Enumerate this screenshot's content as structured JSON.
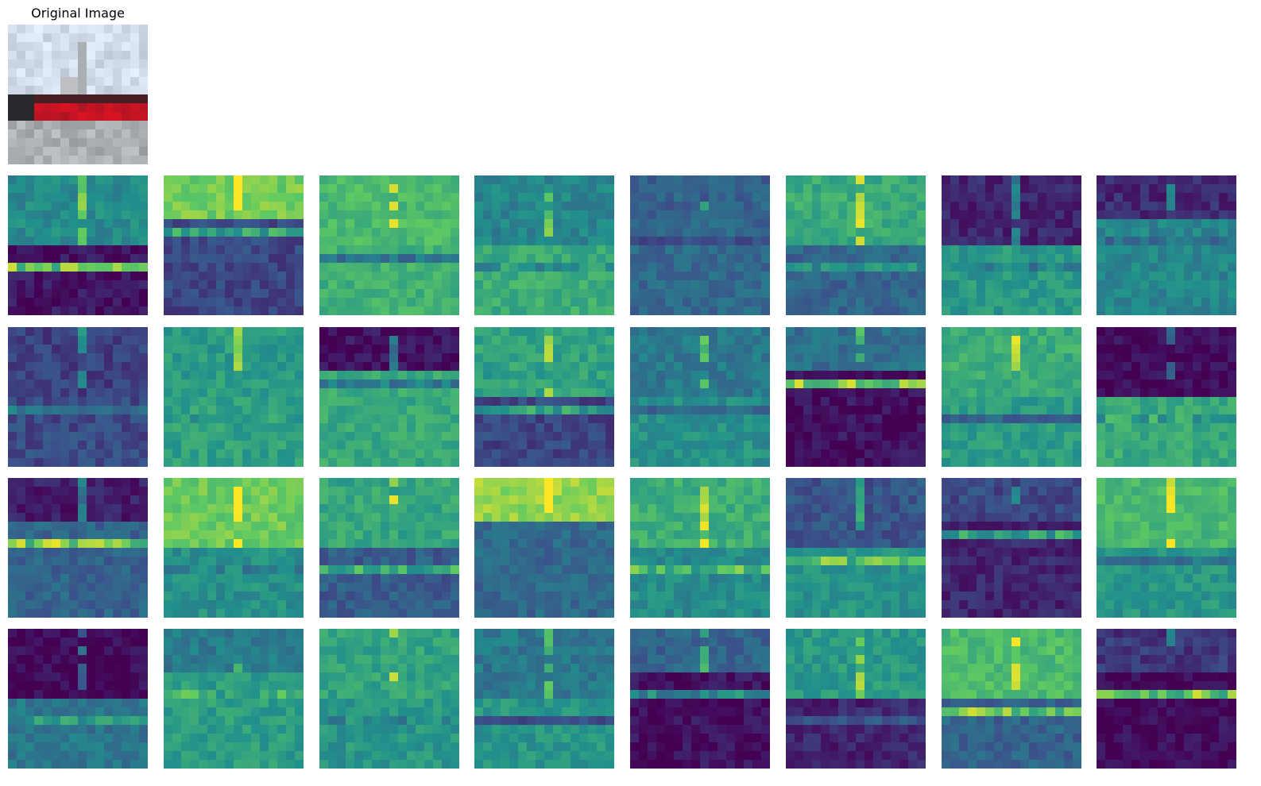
{
  "original": {
    "title": "Original Image"
  },
  "feature_maps": {
    "rows": 4,
    "cols": 8,
    "count": 32,
    "colormap": "viridis",
    "cell_grid": "16x16",
    "axes_visible": false
  },
  "colors": {
    "viridis_low": "#440154",
    "viridis_mid": "#21908c",
    "viridis_high": "#fde725",
    "background": "#ffffff"
  }
}
